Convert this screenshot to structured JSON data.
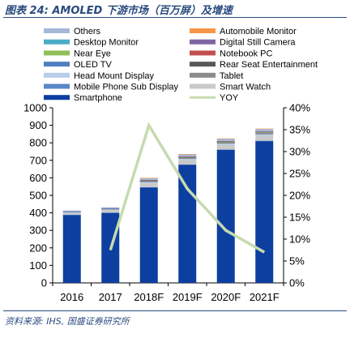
{
  "title": "图表 24: AMOLED 下游市场（百万屏）及增速",
  "source": "资料来源: IHS, 国盛证券研究所",
  "chart_data": {
    "type": "bar",
    "stacked": true,
    "categories": [
      "2016",
      "2017",
      "2018F",
      "2019F",
      "2020F",
      "2021F"
    ],
    "ylim": [
      0,
      1000
    ],
    "y2lim": [
      0,
      0.4
    ],
    "yticks": [
      0,
      100,
      200,
      300,
      400,
      500,
      600,
      700,
      800,
      900,
      1000
    ],
    "y2ticks": [
      "0%",
      "5%",
      "10%",
      "15%",
      "20%",
      "25%",
      "30%",
      "35%",
      "40%"
    ],
    "legend_position": "top",
    "series": [
      {
        "name": "Smartphone",
        "color": "#0d3fa0",
        "values": [
          388,
          400,
          545,
          675,
          760,
          810
        ]
      },
      {
        "name": "Mobile Phone Sub Display",
        "color": "#5b86c9",
        "values": [
          2,
          2,
          2,
          2,
          2,
          2
        ]
      },
      {
        "name": "Smart Watch",
        "color": "#c9c9c9",
        "values": [
          10,
          14,
          22,
          24,
          26,
          28
        ]
      },
      {
        "name": "Head Mount Display",
        "color": "#b8cde8",
        "values": [
          2,
          3,
          6,
          7,
          7,
          8
        ]
      },
      {
        "name": "Tablet",
        "color": "#8c8c8c",
        "values": [
          3,
          4,
          6,
          6,
          6,
          7
        ]
      },
      {
        "name": "OLED TV",
        "color": "#4f7fc0",
        "values": [
          1,
          1,
          2,
          2,
          2,
          3
        ]
      },
      {
        "name": "Rear Seat Entertainment",
        "color": "#5a5a5a",
        "values": [
          0,
          0,
          1,
          1,
          1,
          1
        ]
      },
      {
        "name": "Near Eye",
        "color": "#8fbf5a",
        "values": [
          0,
          0,
          1,
          1,
          1,
          1
        ]
      },
      {
        "name": "Notebook PC",
        "color": "#c0504d",
        "values": [
          0,
          0,
          1,
          2,
          3,
          3
        ]
      },
      {
        "name": "Desktop Monitor",
        "color": "#4bacc6",
        "values": [
          1,
          1,
          2,
          2,
          2,
          2
        ]
      },
      {
        "name": "Digital Still Camera",
        "color": "#8064a2",
        "values": [
          1,
          1,
          1,
          1,
          1,
          1
        ]
      },
      {
        "name": "Others",
        "color": "#a5b8d8",
        "values": [
          6,
          6,
          10,
          12,
          13,
          14
        ]
      },
      {
        "name": "Automobile Monitor",
        "color": "#f79646",
        "values": [
          0,
          0,
          1,
          1,
          1,
          1
        ]
      }
    ],
    "line": {
      "name": "YOY",
      "color": "#c6dab0",
      "axis": "right",
      "x": [
        "2017",
        "2018F",
        "2019F",
        "2020F",
        "2021F"
      ],
      "values": [
        0.075,
        0.36,
        0.215,
        0.12,
        0.07
      ]
    },
    "legend": {
      "left": [
        "Others",
        "Desktop Monitor",
        "Near Eye",
        "OLED TV",
        "Head Mount Display",
        "Mobile Phone Sub Display",
        "Smartphone"
      ],
      "right": [
        "Automobile Monitor",
        "Digital Still Camera",
        "Notebook PC",
        "Rear Seat Entertainment",
        "Tablet",
        "Smart Watch",
        "YOY"
      ]
    }
  }
}
